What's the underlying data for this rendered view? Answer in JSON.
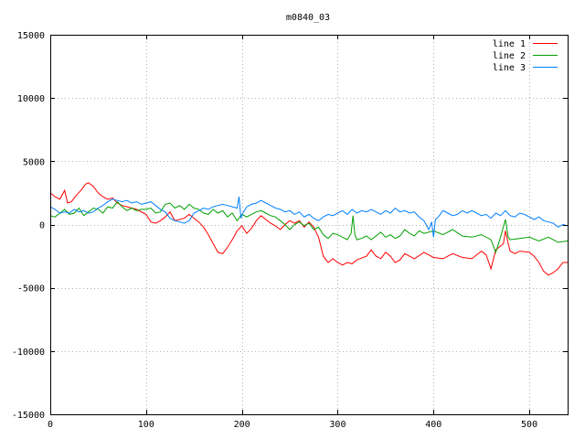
{
  "chart_data": {
    "type": "line",
    "title": "m0840_03",
    "xlabel": "",
    "ylabel": "",
    "xlim": [
      0,
      540
    ],
    "ylim": [
      -15000,
      15000
    ],
    "x_ticks": [
      0,
      100,
      200,
      300,
      400,
      500
    ],
    "y_ticks": [
      -15000,
      -10000,
      -5000,
      0,
      5000,
      10000,
      15000
    ],
    "grid": true,
    "legend_position": "top-right",
    "series": [
      {
        "name": "line 1",
        "color": "#ff0000",
        "points": [
          [
            0,
            2500
          ],
          [
            5,
            2200
          ],
          [
            10,
            2000
          ],
          [
            15,
            2700
          ],
          [
            18,
            1700
          ],
          [
            22,
            1800
          ],
          [
            27,
            2300
          ],
          [
            32,
            2700
          ],
          [
            37,
            3200
          ],
          [
            40,
            3300
          ],
          [
            45,
            3000
          ],
          [
            50,
            2500
          ],
          [
            55,
            2200
          ],
          [
            60,
            2000
          ],
          [
            65,
            2100
          ],
          [
            70,
            1700
          ],
          [
            75,
            1500
          ],
          [
            80,
            1400
          ],
          [
            90,
            1200
          ],
          [
            100,
            800
          ],
          [
            105,
            200
          ],
          [
            110,
            100
          ],
          [
            115,
            300
          ],
          [
            120,
            600
          ],
          [
            125,
            1000
          ],
          [
            130,
            300
          ],
          [
            135,
            400
          ],
          [
            140,
            500
          ],
          [
            145,
            800
          ],
          [
            150,
            500
          ],
          [
            155,
            200
          ],
          [
            160,
            -200
          ],
          [
            165,
            -800
          ],
          [
            170,
            -1500
          ],
          [
            175,
            -2200
          ],
          [
            180,
            -2300
          ],
          [
            185,
            -1800
          ],
          [
            190,
            -1200
          ],
          [
            195,
            -500
          ],
          [
            200,
            -100
          ],
          [
            205,
            -700
          ],
          [
            210,
            -300
          ],
          [
            215,
            300
          ],
          [
            220,
            700
          ],
          [
            225,
            400
          ],
          [
            230,
            100
          ],
          [
            235,
            -100
          ],
          [
            240,
            -400
          ],
          [
            245,
            0
          ],
          [
            250,
            300
          ],
          [
            255,
            100
          ],
          [
            260,
            300
          ],
          [
            265,
            -200
          ],
          [
            270,
            200
          ],
          [
            275,
            -200
          ],
          [
            280,
            -1000
          ],
          [
            285,
            -2500
          ],
          [
            290,
            -3000
          ],
          [
            295,
            -2700
          ],
          [
            300,
            -3000
          ],
          [
            305,
            -3200
          ],
          [
            310,
            -3000
          ],
          [
            315,
            -3100
          ],
          [
            320,
            -2800
          ],
          [
            330,
            -2500
          ],
          [
            335,
            -2000
          ],
          [
            340,
            -2500
          ],
          [
            345,
            -2700
          ],
          [
            350,
            -2200
          ],
          [
            355,
            -2500
          ],
          [
            360,
            -3000
          ],
          [
            365,
            -2800
          ],
          [
            370,
            -2300
          ],
          [
            380,
            -2700
          ],
          [
            390,
            -2200
          ],
          [
            400,
            -2600
          ],
          [
            410,
            -2700
          ],
          [
            420,
            -2300
          ],
          [
            430,
            -2600
          ],
          [
            440,
            -2700
          ],
          [
            450,
            -2100
          ],
          [
            455,
            -2400
          ],
          [
            460,
            -3500
          ],
          [
            465,
            -2000
          ],
          [
            470,
            -1700
          ],
          [
            473,
            -1500
          ],
          [
            475,
            -500
          ],
          [
            478,
            -1500
          ],
          [
            480,
            -2100
          ],
          [
            485,
            -2300
          ],
          [
            490,
            -2100
          ],
          [
            500,
            -2200
          ],
          [
            505,
            -2500
          ],
          [
            510,
            -3000
          ],
          [
            515,
            -3700
          ],
          [
            520,
            -4000
          ],
          [
            525,
            -3800
          ],
          [
            530,
            -3500
          ],
          [
            535,
            -3000
          ],
          [
            540,
            -3000
          ]
        ]
      },
      {
        "name": "line 2",
        "color": "#00a000",
        "points": [
          [
            0,
            700
          ],
          [
            5,
            600
          ],
          [
            10,
            900
          ],
          [
            15,
            1200
          ],
          [
            20,
            800
          ],
          [
            25,
            900
          ],
          [
            30,
            1300
          ],
          [
            35,
            700
          ],
          [
            40,
            1000
          ],
          [
            45,
            1300
          ],
          [
            50,
            1200
          ],
          [
            55,
            900
          ],
          [
            60,
            1400
          ],
          [
            65,
            1300
          ],
          [
            70,
            1800
          ],
          [
            75,
            1400
          ],
          [
            80,
            1100
          ],
          [
            85,
            1300
          ],
          [
            90,
            1100
          ],
          [
            95,
            1200
          ],
          [
            100,
            1200
          ],
          [
            105,
            1300
          ],
          [
            110,
            900
          ],
          [
            115,
            1000
          ],
          [
            120,
            1600
          ],
          [
            125,
            1700
          ],
          [
            130,
            1300
          ],
          [
            135,
            1500
          ],
          [
            140,
            1200
          ],
          [
            145,
            1600
          ],
          [
            150,
            1300
          ],
          [
            155,
            1200
          ],
          [
            160,
            900
          ],
          [
            165,
            800
          ],
          [
            170,
            1200
          ],
          [
            175,
            900
          ],
          [
            180,
            1100
          ],
          [
            185,
            600
          ],
          [
            190,
            900
          ],
          [
            195,
            300
          ],
          [
            200,
            800
          ],
          [
            205,
            600
          ],
          [
            210,
            800
          ],
          [
            215,
            1000
          ],
          [
            220,
            1100
          ],
          [
            225,
            900
          ],
          [
            230,
            700
          ],
          [
            235,
            600
          ],
          [
            240,
            300
          ],
          [
            245,
            0
          ],
          [
            250,
            -400
          ],
          [
            255,
            0
          ],
          [
            260,
            200
          ],
          [
            265,
            -100
          ],
          [
            270,
            100
          ],
          [
            275,
            -400
          ],
          [
            280,
            -200
          ],
          [
            285,
            -800
          ],
          [
            290,
            -1100
          ],
          [
            295,
            -700
          ],
          [
            300,
            -800
          ],
          [
            305,
            -1000
          ],
          [
            310,
            -1200
          ],
          [
            314,
            -700
          ],
          [
            316,
            700
          ],
          [
            318,
            -800
          ],
          [
            320,
            -1200
          ],
          [
            325,
            -1100
          ],
          [
            330,
            -900
          ],
          [
            335,
            -1200
          ],
          [
            340,
            -900
          ],
          [
            345,
            -600
          ],
          [
            350,
            -1000
          ],
          [
            355,
            -800
          ],
          [
            360,
            -1100
          ],
          [
            365,
            -900
          ],
          [
            370,
            -400
          ],
          [
            375,
            -700
          ],
          [
            380,
            -900
          ],
          [
            385,
            -500
          ],
          [
            390,
            -700
          ],
          [
            400,
            -500
          ],
          [
            410,
            -800
          ],
          [
            420,
            -400
          ],
          [
            430,
            -900
          ],
          [
            440,
            -1000
          ],
          [
            450,
            -800
          ],
          [
            460,
            -1200
          ],
          [
            465,
            -2200
          ],
          [
            470,
            -1000
          ],
          [
            475,
            400
          ],
          [
            478,
            -1000
          ],
          [
            480,
            -1200
          ],
          [
            490,
            -1100
          ],
          [
            500,
            -1000
          ],
          [
            510,
            -1300
          ],
          [
            520,
            -1000
          ],
          [
            530,
            -1400
          ],
          [
            540,
            -1300
          ]
        ]
      },
      {
        "name": "line 3",
        "color": "#0080ff",
        "points": [
          [
            0,
            1400
          ],
          [
            5,
            1200
          ],
          [
            10,
            900
          ],
          [
            15,
            1000
          ],
          [
            20,
            900
          ],
          [
            25,
            1200
          ],
          [
            30,
            1000
          ],
          [
            35,
            1100
          ],
          [
            40,
            900
          ],
          [
            45,
            1000
          ],
          [
            50,
            1300
          ],
          [
            55,
            1500
          ],
          [
            60,
            1800
          ],
          [
            65,
            2000
          ],
          [
            70,
            1900
          ],
          [
            75,
            1800
          ],
          [
            80,
            1900
          ],
          [
            85,
            1700
          ],
          [
            90,
            1800
          ],
          [
            95,
            1600
          ],
          [
            100,
            1700
          ],
          [
            105,
            1800
          ],
          [
            110,
            1500
          ],
          [
            115,
            1200
          ],
          [
            120,
            1000
          ],
          [
            125,
            500
          ],
          [
            130,
            300
          ],
          [
            135,
            200
          ],
          [
            140,
            100
          ],
          [
            145,
            300
          ],
          [
            150,
            900
          ],
          [
            155,
            1100
          ],
          [
            160,
            1300
          ],
          [
            165,
            1200
          ],
          [
            170,
            1400
          ],
          [
            175,
            1500
          ],
          [
            180,
            1600
          ],
          [
            185,
            1500
          ],
          [
            190,
            1400
          ],
          [
            195,
            1300
          ],
          [
            197,
            2200
          ],
          [
            199,
            500
          ],
          [
            201,
            900
          ],
          [
            205,
            1400
          ],
          [
            210,
            1600
          ],
          [
            215,
            1700
          ],
          [
            220,
            1900
          ],
          [
            225,
            1700
          ],
          [
            230,
            1500
          ],
          [
            235,
            1300
          ],
          [
            240,
            1200
          ],
          [
            245,
            1000
          ],
          [
            250,
            1100
          ],
          [
            255,
            800
          ],
          [
            260,
            1000
          ],
          [
            265,
            600
          ],
          [
            270,
            800
          ],
          [
            275,
            500
          ],
          [
            280,
            300
          ],
          [
            285,
            600
          ],
          [
            290,
            800
          ],
          [
            295,
            700
          ],
          [
            300,
            900
          ],
          [
            305,
            1100
          ],
          [
            310,
            800
          ],
          [
            315,
            1200
          ],
          [
            320,
            900
          ],
          [
            325,
            1100
          ],
          [
            330,
            1000
          ],
          [
            335,
            1200
          ],
          [
            340,
            1000
          ],
          [
            345,
            800
          ],
          [
            350,
            1100
          ],
          [
            355,
            900
          ],
          [
            360,
            1300
          ],
          [
            365,
            1000
          ],
          [
            370,
            1100
          ],
          [
            375,
            900
          ],
          [
            380,
            1000
          ],
          [
            385,
            600
          ],
          [
            390,
            300
          ],
          [
            395,
            -400
          ],
          [
            398,
            200
          ],
          [
            400,
            -1000
          ],
          [
            402,
            400
          ],
          [
            405,
            600
          ],
          [
            410,
            1100
          ],
          [
            415,
            900
          ],
          [
            420,
            700
          ],
          [
            425,
            800
          ],
          [
            430,
            1100
          ],
          [
            435,
            900
          ],
          [
            440,
            1100
          ],
          [
            445,
            900
          ],
          [
            450,
            700
          ],
          [
            455,
            800
          ],
          [
            460,
            500
          ],
          [
            465,
            900
          ],
          [
            470,
            700
          ],
          [
            475,
            1100
          ],
          [
            480,
            700
          ],
          [
            485,
            600
          ],
          [
            490,
            900
          ],
          [
            495,
            800
          ],
          [
            500,
            600
          ],
          [
            505,
            400
          ],
          [
            510,
            600
          ],
          [
            515,
            300
          ],
          [
            520,
            200
          ],
          [
            525,
            100
          ],
          [
            530,
            -200
          ],
          [
            535,
            0
          ],
          [
            540,
            -100
          ]
        ]
      }
    ]
  }
}
